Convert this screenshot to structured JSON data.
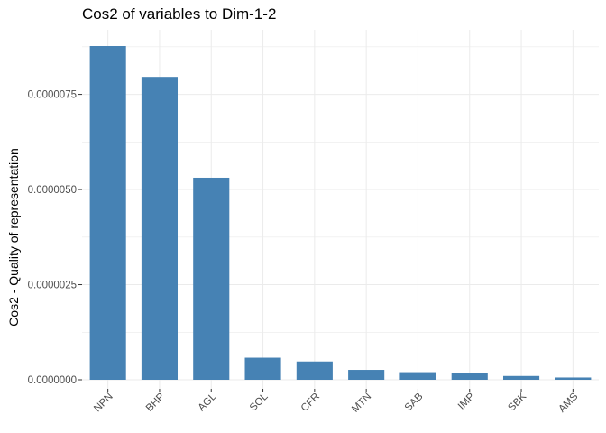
{
  "chart_data": {
    "type": "bar",
    "title": "Cos2 of variables to Dim-1-2",
    "xlabel": "",
    "ylabel": "Cos2 - Quality of representation",
    "categories": [
      "NPN",
      "BHP",
      "AGL",
      "SOL",
      "CFR",
      "MTN",
      "SAB",
      "IMP",
      "SBK",
      "AMS"
    ],
    "values": [
      8.77e-06,
      7.96e-06,
      5.31e-06,
      5.8e-07,
      4.8e-07,
      2.6e-07,
      2e-07,
      1.7e-07,
      1e-07,
      6e-08
    ],
    "y_ticks": [
      {
        "value": 0,
        "label": "0.0000000"
      },
      {
        "value": 2.5e-06,
        "label": "0.0000025"
      },
      {
        "value": 5e-06,
        "label": "0.0000050"
      },
      {
        "value": 7.5e-06,
        "label": "0.0000075"
      }
    ],
    "ylim": [
      0,
      8.93e-06
    ],
    "grid": true,
    "bar_color": "#4682B4",
    "grid_color": "#EBEBEB"
  }
}
